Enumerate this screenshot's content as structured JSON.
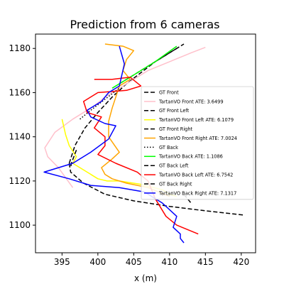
{
  "chart_data": {
    "type": "line",
    "title": "Prediction from 6 cameras",
    "xlabel": "x (m)",
    "ylabel": "",
    "xlim": [
      391.3,
      422.0
    ],
    "ylim": [
      1087.5,
      1186.5
    ],
    "xticks": [
      395,
      400,
      405,
      410,
      415,
      420
    ],
    "yticks": [
      1100,
      1120,
      1140,
      1160,
      1180
    ],
    "grid": false,
    "legend_position": "center-right",
    "series": [
      {
        "name": "GT Front",
        "color": "#000000",
        "style": "dashed",
        "x": [
          396,
          396.8,
          398.2,
          400,
          402,
          404,
          406,
          408,
          410,
          412
        ],
        "y": [
          1128,
          1136,
          1144,
          1151,
          1158,
          1164,
          1169,
          1174,
          1178,
          1182
        ]
      },
      {
        "name": "TartanVO Front ATE: 3.6499",
        "color": "#ffc0cb",
        "style": "solid",
        "x": [
          396.5,
          394.5,
          393.0,
          392.6,
          394,
          396.5,
          399.5,
          401,
          404,
          407,
          410,
          413,
          415
        ],
        "y": [
          1117,
          1126,
          1131,
          1135,
          1142,
          1148,
          1154,
          1158,
          1164,
          1170,
          1174,
          1178,
          1180.5
        ]
      },
      {
        "name": "GT Front Left",
        "color": "#000000",
        "style": "dashed",
        "x": [
          396,
          396.2,
          398,
          401,
          405,
          410,
          415,
          420.5
        ],
        "y": [
          1128,
          1124,
          1119,
          1114,
          1111,
          1108.5,
          1106.5,
          1104.5
        ]
      },
      {
        "name": "TartanVO Front Left ATE:  6.1079",
        "color": "#ffff00",
        "style": "solid",
        "x": [
          395,
          395.5,
          396,
          397,
          396.5,
          398.5,
          400,
          401.3,
          403,
          406,
          409,
          410,
          411
        ],
        "y": [
          1148,
          1141,
          1136,
          1131,
          1128,
          1124,
          1121,
          1120,
          1120,
          1118.5,
          1116,
          1114,
          1113
        ]
      },
      {
        "name": "GT Front Right",
        "color": "#000000",
        "style": "dashed",
        "x": [
          403,
          405,
          407,
          409,
          411
        ],
        "y": [
          1164,
          1168,
          1172,
          1176,
          1180
        ]
      },
      {
        "name": "TartanVO Front Right ATE: 7.0024",
        "color": "#ffa500",
        "style": "solid",
        "x": [
          401,
          403.5,
          405,
          404,
          403.5,
          404.5,
          403,
          402.5,
          402,
          401.5,
          401.5,
          403,
          402,
          400.5,
          401,
          402,
          404,
          407,
          410
        ],
        "y": [
          1182,
          1181,
          1179,
          1175,
          1170,
          1166,
          1163,
          1158,
          1153,
          1147,
          1140,
          1133,
          1130,
          1126,
          1123,
          1121,
          1119,
          1117,
          1113
        ]
      },
      {
        "name": "GT Back",
        "color": "#000000",
        "style": "dotted",
        "x": [
          397.5,
          399,
          401,
          403
        ],
        "y": [
          1148,
          1152,
          1157,
          1162
        ]
      },
      {
        "name": "TartanVO Back ATE: 1.1086",
        "color": "#00ff00",
        "style": "solid",
        "x": [
          402,
          405,
          408,
          411
        ],
        "y": [
          1162,
          1168,
          1174,
          1181
        ]
      },
      {
        "name": "GT Back Left",
        "color": "#000000",
        "style": "dashed",
        "x": [
          397,
          396.3,
          396.2
        ],
        "y": [
          1134,
          1128,
          1126
        ]
      },
      {
        "name": "TartanVO Back Left ATE: 6.7542",
        "color": "#ff0000",
        "style": "solid",
        "x": [
          399.5,
          402,
          404.5,
          406,
          404,
          402,
          400,
          398,
          398.5,
          400.5,
          399.5,
          401,
          401,
          400,
          402.5,
          405.5,
          407,
          408,
          409.5,
          411,
          414
        ],
        "y": [
          1166,
          1166,
          1167,
          1163,
          1161,
          1160.5,
          1160,
          1156,
          1151,
          1149,
          1144,
          1140,
          1136,
          1132,
          1128,
          1124,
          1120,
          1112,
          1104,
          1100,
          1096
        ]
      },
      {
        "name": "GT Back Right",
        "color": "#000000",
        "style": "dashed",
        "x": [
          412,
          413
        ],
        "y": [
          1114,
          1110
        ]
      },
      {
        "name": "TartanVO Back Right ATE: 7.1317",
        "color": "#0000ff",
        "style": "solid",
        "x": [
          403,
          403.7,
          403,
          401.5,
          400.5,
          398.5,
          399,
          401,
          402.5,
          401.5,
          399,
          396.5,
          392.5,
          396,
          399,
          403,
          406.5,
          409,
          411,
          410.5,
          411.5,
          411.5,
          412
        ],
        "y": [
          1181,
          1173,
          1163,
          1160,
          1156,
          1152,
          1149,
          1146,
          1145,
          1139,
          1133,
          1128,
          1124,
          1121,
          1118,
          1117,
          1115,
          1110,
          1104,
          1099,
          1096,
          1094,
          1092
        ]
      }
    ]
  }
}
